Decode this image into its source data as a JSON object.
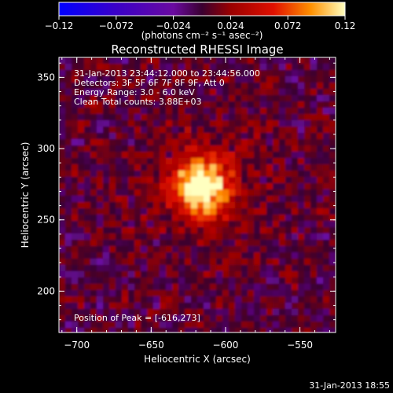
{
  "chart_data": {
    "type": "heatmap",
    "title": "Reconstructed RHESSI Image",
    "xlabel": "Heliocentric X (arcsec)",
    "ylabel": "Heliocentric Y (arcsec)",
    "xlim": [
      -712,
      -526
    ],
    "ylim": [
      171,
      364
    ],
    "xticks": [
      -700,
      -650,
      -600,
      -550
    ],
    "yticks": [
      200,
      250,
      300,
      350
    ],
    "xtick_labels": [
      "−700",
      "−650",
      "−600",
      "−550"
    ],
    "ytick_labels": [
      "200",
      "250",
      "300",
      "350"
    ],
    "colorbar": {
      "range": [
        -0.12,
        0.12
      ],
      "ticks": [
        -0.12,
        -0.072,
        -0.024,
        0.024,
        0.072,
        0.12
      ],
      "tick_labels": [
        "−0.12",
        "−0.072",
        "−0.024",
        "0.024",
        "0.072",
        "0.12"
      ],
      "label": "(photons cm⁻² s⁻¹ asec⁻²)"
    },
    "peak": {
      "x": -616,
      "y": 273
    },
    "annotations": [
      "31-Jan-2013 23:44:12.000 to 23:44:56.000",
      "Detectors: 3F 5F 6F 7F 8F 9F, Att 0",
      "Energy Range: 3.0 - 6.0 keV",
      "Clean     Total counts: 3.88E+03"
    ],
    "peak_label": "Position of Peak = [-616,273]"
  },
  "footer": {
    "timestamp": "31-Jan-2013 18:55"
  }
}
